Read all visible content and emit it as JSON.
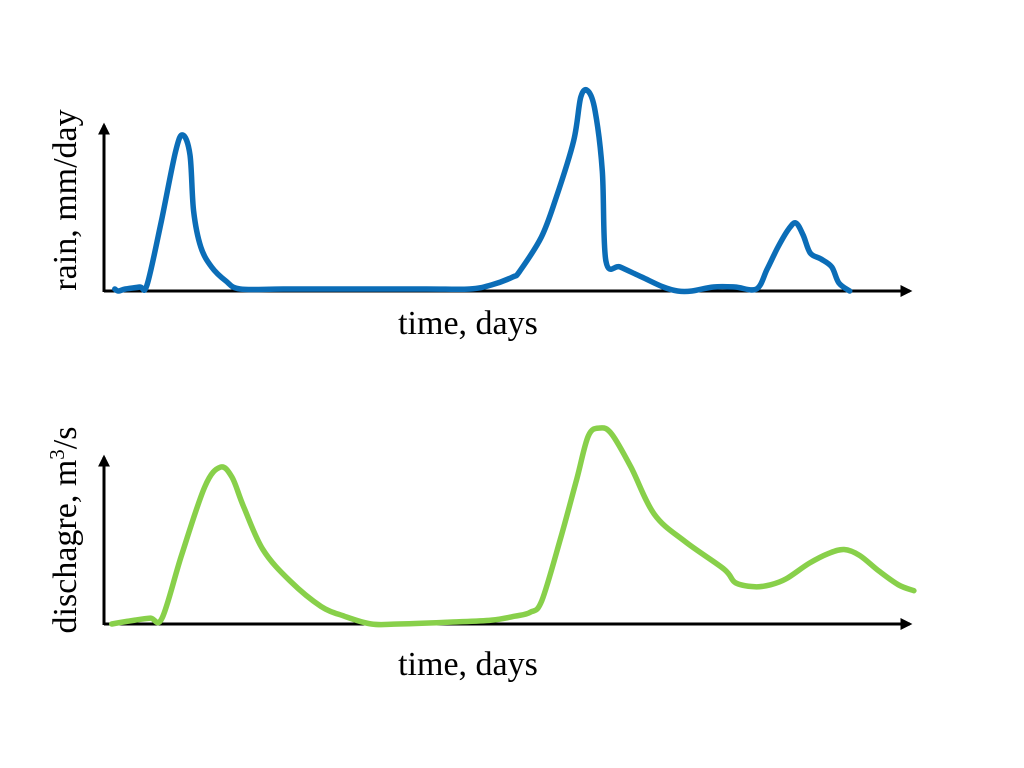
{
  "chart_data": [
    {
      "type": "line",
      "xlabel": "time, days",
      "ylabel": "rain, mm/day",
      "x_ticks": false,
      "y_ticks": false,
      "grid": false,
      "xlim": [
        0,
        100
      ],
      "ylim": [
        0,
        100
      ],
      "color": "#0b6db7",
      "series": [
        {
          "points": [
            [
              1.5,
              1
            ],
            [
              2,
              0
            ],
            [
              3,
              1
            ],
            [
              5,
              2
            ],
            [
              6,
              3
            ],
            [
              8,
              35
            ],
            [
              10,
              70
            ],
            [
              11,
              78
            ],
            [
              12,
              68
            ],
            [
              12.5,
              40
            ],
            [
              13.5,
              22
            ],
            [
              15,
              12
            ],
            [
              17,
              5
            ],
            [
              19,
              1
            ],
            [
              25,
              1
            ],
            [
              35,
              1
            ],
            [
              45,
              1
            ],
            [
              51,
              1
            ],
            [
              54,
              3
            ],
            [
              57,
              7
            ],
            [
              58,
              10
            ],
            [
              61,
              27
            ],
            [
              63,
              46
            ],
            [
              65.5,
              75
            ],
            [
              66.5,
              97
            ],
            [
              67.5,
              100
            ],
            [
              68.5,
              90
            ],
            [
              69.5,
              60
            ],
            [
              70,
              15
            ],
            [
              72,
              12
            ],
            [
              75,
              7
            ],
            [
              78,
              2
            ],
            [
              80,
              0
            ],
            [
              82,
              0
            ],
            [
              85,
              2
            ],
            [
              88,
              2
            ],
            [
              91,
              1
            ],
            [
              92.5,
              11
            ],
            [
              94,
              22
            ],
            [
              95.5,
              31
            ],
            [
              96.5,
              34
            ],
            [
              97.5,
              28
            ],
            [
              98.5,
              19
            ],
            [
              100,
              16
            ],
            [
              101.5,
              12
            ],
            [
              102.5,
              4
            ],
            [
              104,
              0
            ]
          ]
        }
      ]
    },
    {
      "type": "line",
      "xlabel": "time, days",
      "ylabel": "dischagre, m",
      "ylabel_superscript": "3",
      "ylabel_suffix": "/s",
      "x_ticks": false,
      "y_ticks": false,
      "grid": false,
      "xlim": [
        0,
        100
      ],
      "ylim": [
        0,
        100
      ],
      "color": "#88d04a",
      "series": [
        {
          "points": [
            [
              1,
              0
            ],
            [
              4,
              2
            ],
            [
              6,
              3
            ],
            [
              7.5,
              3
            ],
            [
              10,
              35
            ],
            [
              13,
              70
            ],
            [
              15,
              80
            ],
            [
              16.5,
              75
            ],
            [
              18,
              60
            ],
            [
              20.5,
              38
            ],
            [
              24,
              22
            ],
            [
              28,
              9
            ],
            [
              31,
              4
            ],
            [
              34.5,
              0
            ],
            [
              38,
              0
            ],
            [
              45,
              1
            ],
            [
              50,
              2
            ],
            [
              53,
              4
            ],
            [
              55,
              6
            ],
            [
              56.5,
              12
            ],
            [
              59,
              45
            ],
            [
              61,
              74
            ],
            [
              62.5,
              96
            ],
            [
              64,
              100
            ],
            [
              65.5,
              97
            ],
            [
              68,
              80
            ],
            [
              71,
              56
            ],
            [
              75,
              42
            ],
            [
              80,
              28
            ],
            [
              81.5,
              21
            ],
            [
              84,
              19
            ],
            [
              86,
              20
            ],
            [
              88,
              23
            ],
            [
              91,
              31
            ],
            [
              93.5,
              36
            ],
            [
              95.5,
              38
            ],
            [
              97.5,
              35
            ],
            [
              100,
              27
            ],
            [
              102.5,
              20
            ],
            [
              104.5,
              17
            ]
          ]
        }
      ]
    }
  ]
}
